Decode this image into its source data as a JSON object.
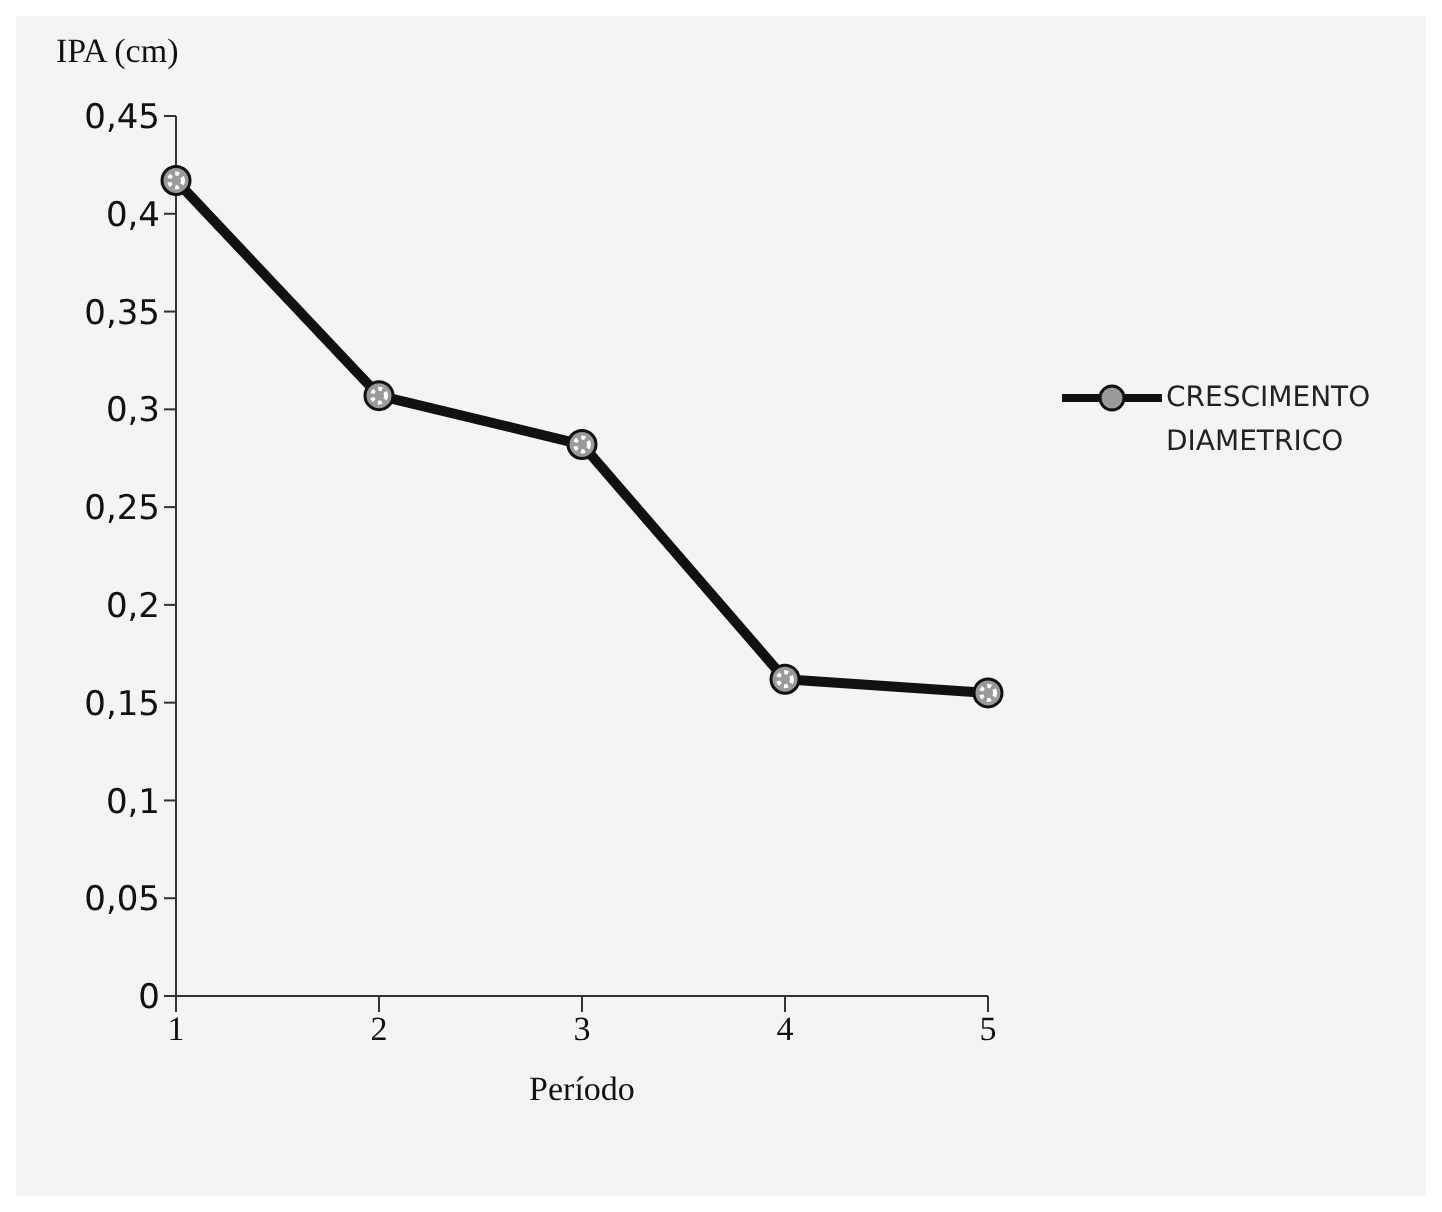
{
  "chart_data": {
    "type": "line",
    "ylabel": "IPA (cm)",
    "xlabel": "Período",
    "categories": [
      "1",
      "2",
      "3",
      "4",
      "5"
    ],
    "series": [
      {
        "name": "CRESCIMENTO DIAMETRICO",
        "color": "#111111",
        "values": [
          0.417,
          0.307,
          0.282,
          0.162,
          0.155
        ]
      }
    ],
    "ylim": [
      0,
      0.45
    ],
    "yticks": [
      {
        "value": 0,
        "label": "0"
      },
      {
        "value": 0.05,
        "label": "0,05"
      },
      {
        "value": 0.1,
        "label": "0,1"
      },
      {
        "value": 0.15,
        "label": "0,15"
      },
      {
        "value": 0.2,
        "label": "0,2"
      },
      {
        "value": 0.25,
        "label": "0,25"
      },
      {
        "value": 0.3,
        "label": "0,3"
      },
      {
        "value": 0.35,
        "label": "0,35"
      },
      {
        "value": 0.4,
        "label": "0,4"
      },
      {
        "value": 0.45,
        "label": "0,45"
      }
    ],
    "grid": false,
    "legend": "right",
    "marker": "circle",
    "line_style": "solid"
  }
}
